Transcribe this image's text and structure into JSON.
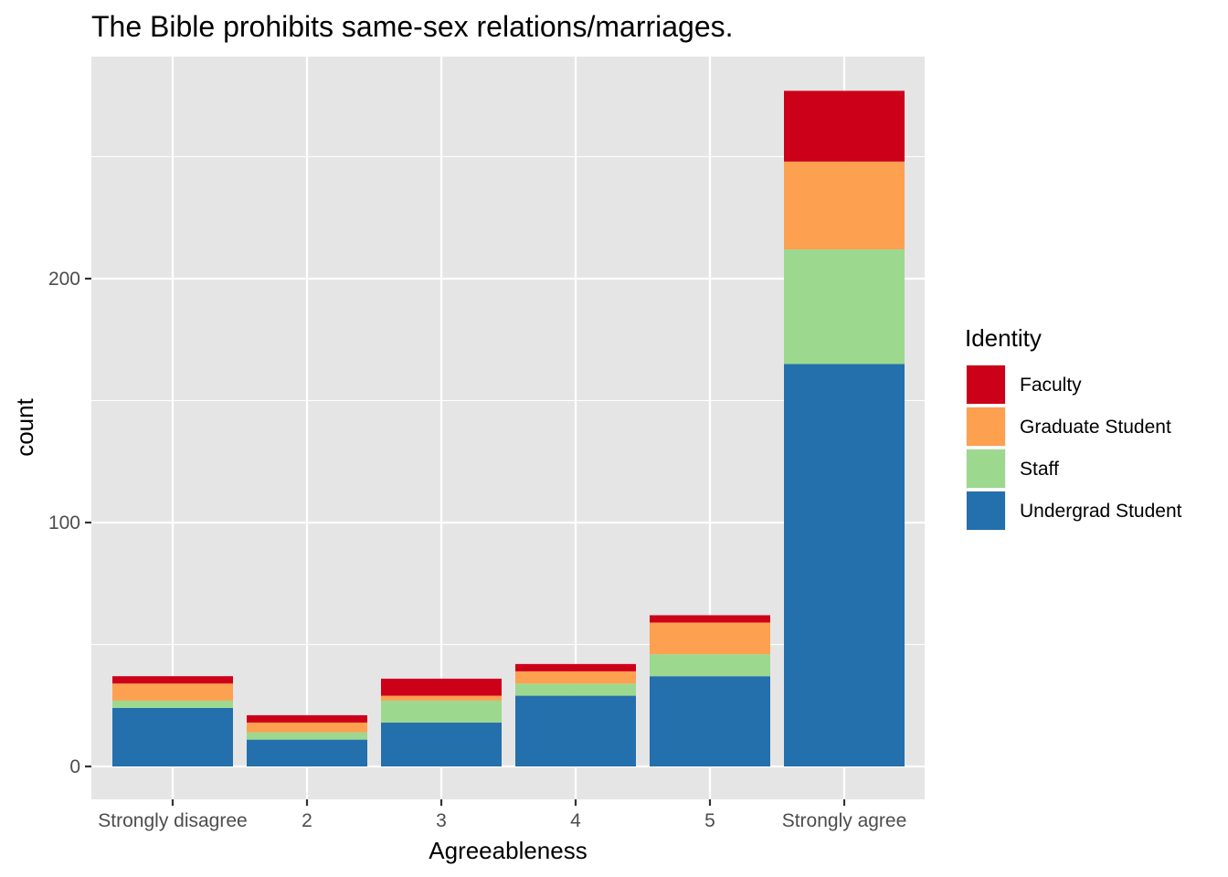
{
  "chart_data": {
    "type": "bar",
    "stacked": true,
    "title": "The Bible prohibits same-sex relations/marriages.",
    "xlabel": "Agreeableness",
    "ylabel": "count",
    "categories": [
      "Strongly disagree",
      "2",
      "3",
      "4",
      "5",
      "Strongly agree"
    ],
    "ylim": [
      0,
      278
    ],
    "yticks": [
      0,
      100,
      200
    ],
    "grid": true,
    "legend": {
      "title": "Identity",
      "position": "right"
    },
    "series": [
      {
        "name": "Undergrad Student",
        "color": "#2470ad",
        "values": [
          24,
          11,
          18,
          29,
          37,
          165
        ]
      },
      {
        "name": "Staff",
        "color": "#9dd88f",
        "values": [
          3,
          3,
          9,
          5,
          9,
          47
        ]
      },
      {
        "name": "Graduate Student",
        "color": "#fda050",
        "values": [
          7,
          4,
          2,
          5,
          13,
          36
        ]
      },
      {
        "name": "Faculty",
        "color": "#cd001a",
        "values": [
          3,
          3,
          7,
          3,
          3,
          29
        ]
      }
    ],
    "colors": {
      "panel_background": "#e5e5e5",
      "grid": "#ffffff",
      "tick_label": "#4d4d4d"
    }
  }
}
